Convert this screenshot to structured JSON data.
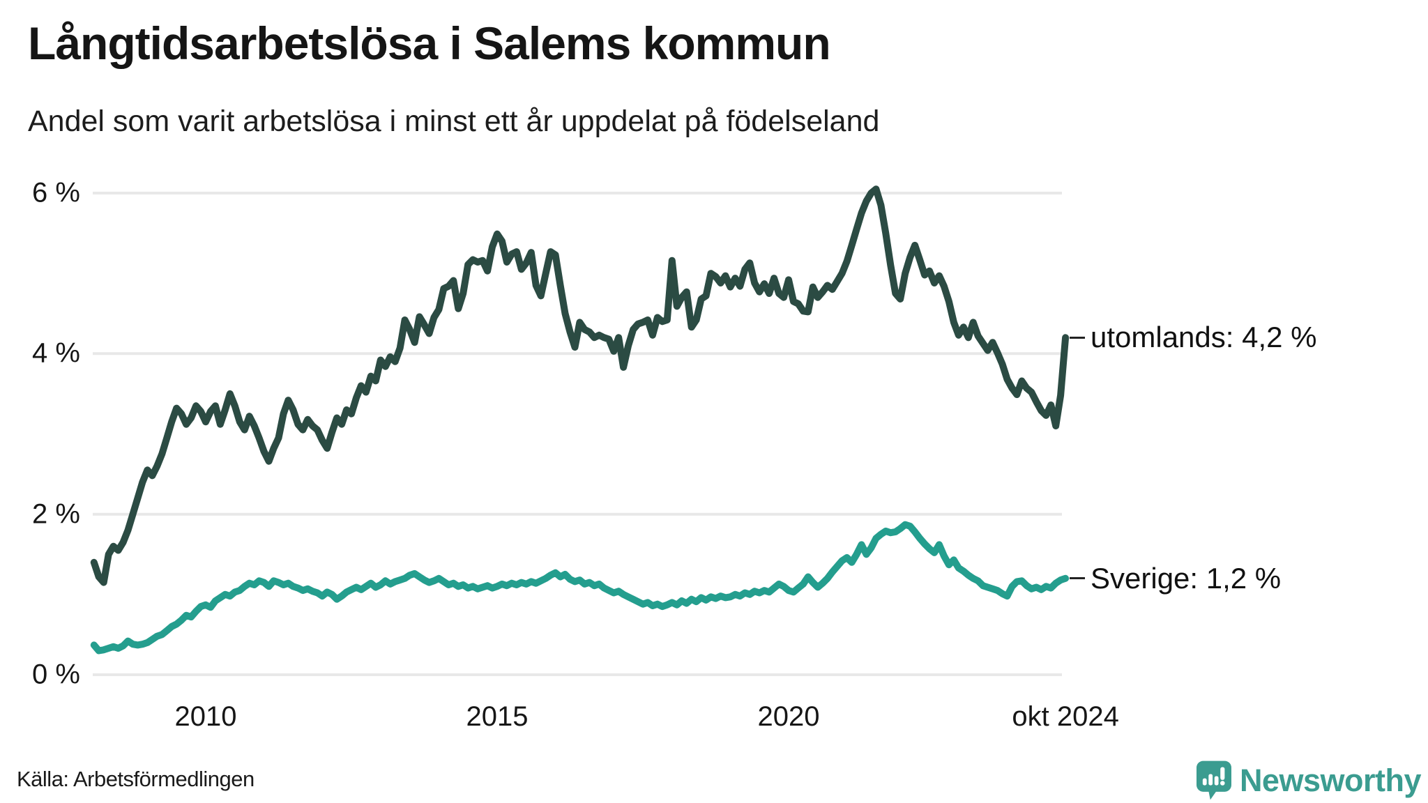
{
  "chart_data": {
    "type": "line",
    "title": "Långtidsarbetslösa i Salems kommun",
    "subtitle": "Andel som varit arbetslösa i minst ett år uppdelat på födelseland",
    "unit": "%",
    "grid": true,
    "legend_position": "right-end-labels",
    "x_start_year": 2008.0833,
    "x_step_years": 0.0833333,
    "xlim": [
      2008.0,
      2025.0
    ],
    "ylim": [
      0,
      6.3
    ],
    "y_ticks": [
      {
        "value": 6,
        "label": "6 %"
      },
      {
        "value": 4,
        "label": "4 %"
      },
      {
        "value": 2,
        "label": "2 %"
      },
      {
        "value": 0,
        "label": "0 %"
      }
    ],
    "x_ticks": [
      {
        "year": 2010,
        "label": "2010"
      },
      {
        "year": 2015,
        "label": "2015"
      },
      {
        "year": 2020,
        "label": "2020"
      },
      {
        "year": 2024.75,
        "label": "okt 2024"
      }
    ],
    "gridline_color": "#e8e8e8",
    "series": [
      {
        "name": "utomlands",
        "end_label": "utomlands: 4,2 %",
        "latest_value": 4.2,
        "color": "#2b4b43",
        "values": [
          1.4,
          1.22,
          1.15,
          1.5,
          1.6,
          1.55,
          1.65,
          1.8,
          2.0,
          2.2,
          2.4,
          2.55,
          2.48,
          2.6,
          2.75,
          2.95,
          3.15,
          3.32,
          3.25,
          3.12,
          3.2,
          3.35,
          3.28,
          3.15,
          3.28,
          3.35,
          3.12,
          3.3,
          3.5,
          3.35,
          3.15,
          3.05,
          3.22,
          3.1,
          2.95,
          2.78,
          2.66,
          2.82,
          2.95,
          3.25,
          3.42,
          3.3,
          3.12,
          3.05,
          3.18,
          3.1,
          3.05,
          2.92,
          2.82,
          3.02,
          3.2,
          3.12,
          3.3,
          3.25,
          3.45,
          3.6,
          3.52,
          3.72,
          3.66,
          3.92,
          3.84,
          3.96,
          3.9,
          4.07,
          4.42,
          4.3,
          4.14,
          4.46,
          4.36,
          4.25,
          4.45,
          4.55,
          4.81,
          4.84,
          4.91,
          4.56,
          4.75,
          5.11,
          5.17,
          5.14,
          5.16,
          5.03,
          5.33,
          5.49,
          5.4,
          5.14,
          5.24,
          5.27,
          5.05,
          5.13,
          5.26,
          4.85,
          4.72,
          5.0,
          5.27,
          5.23,
          4.85,
          4.5,
          4.27,
          4.08,
          4.39,
          4.3,
          4.27,
          4.2,
          4.23,
          4.2,
          4.18,
          4.03,
          4.2,
          3.83,
          4.1,
          4.3,
          4.37,
          4.39,
          4.42,
          4.23,
          4.45,
          4.4,
          4.42,
          5.16,
          4.59,
          4.7,
          4.77,
          4.33,
          4.42,
          4.68,
          4.72,
          5.0,
          4.96,
          4.88,
          4.97,
          4.83,
          4.94,
          4.84,
          5.05,
          5.13,
          4.88,
          4.77,
          4.87,
          4.75,
          4.94,
          4.75,
          4.7,
          4.92,
          4.65,
          4.62,
          4.53,
          4.52,
          4.83,
          4.7,
          4.77,
          4.85,
          4.8,
          4.9,
          5.0,
          5.15,
          5.35,
          5.55,
          5.75,
          5.9,
          6.0,
          6.05,
          5.85,
          5.5,
          5.1,
          4.75,
          4.68,
          5.0,
          5.2,
          5.35,
          5.17,
          4.98,
          5.03,
          4.88,
          4.97,
          4.84,
          4.65,
          4.39,
          4.23,
          4.33,
          4.2,
          4.39,
          4.22,
          4.13,
          4.04,
          4.14,
          4.01,
          3.87,
          3.68,
          3.57,
          3.49,
          3.66,
          3.57,
          3.52,
          3.4,
          3.29,
          3.23,
          3.36,
          3.1,
          3.48,
          4.2
        ]
      },
      {
        "name": "Sverige",
        "end_label": "Sverige: 1,2 %",
        "latest_value": 1.2,
        "color": "#249e8e",
        "values": [
          0.37,
          0.3,
          0.31,
          0.33,
          0.35,
          0.33,
          0.36,
          0.42,
          0.38,
          0.37,
          0.38,
          0.4,
          0.44,
          0.48,
          0.5,
          0.55,
          0.6,
          0.63,
          0.68,
          0.74,
          0.72,
          0.79,
          0.85,
          0.87,
          0.84,
          0.92,
          0.96,
          1.0,
          0.98,
          1.03,
          1.05,
          1.1,
          1.14,
          1.12,
          1.17,
          1.15,
          1.1,
          1.17,
          1.15,
          1.12,
          1.14,
          1.1,
          1.08,
          1.05,
          1.07,
          1.04,
          1.02,
          0.98,
          1.03,
          1.0,
          0.94,
          0.98,
          1.03,
          1.06,
          1.09,
          1.06,
          1.1,
          1.14,
          1.09,
          1.12,
          1.17,
          1.13,
          1.16,
          1.18,
          1.2,
          1.24,
          1.26,
          1.22,
          1.18,
          1.15,
          1.17,
          1.2,
          1.16,
          1.12,
          1.14,
          1.1,
          1.12,
          1.08,
          1.1,
          1.07,
          1.09,
          1.11,
          1.08,
          1.1,
          1.13,
          1.11,
          1.14,
          1.12,
          1.15,
          1.13,
          1.16,
          1.14,
          1.17,
          1.2,
          1.24,
          1.27,
          1.22,
          1.25,
          1.19,
          1.16,
          1.18,
          1.13,
          1.15,
          1.11,
          1.13,
          1.08,
          1.05,
          1.02,
          1.04,
          1.0,
          0.97,
          0.94,
          0.91,
          0.88,
          0.9,
          0.86,
          0.88,
          0.85,
          0.87,
          0.9,
          0.87,
          0.92,
          0.89,
          0.94,
          0.91,
          0.96,
          0.93,
          0.97,
          0.95,
          0.98,
          0.96,
          0.97,
          1.0,
          0.98,
          1.02,
          1.0,
          1.04,
          1.02,
          1.05,
          1.03,
          1.08,
          1.13,
          1.1,
          1.05,
          1.03,
          1.08,
          1.13,
          1.22,
          1.15,
          1.09,
          1.14,
          1.2,
          1.28,
          1.35,
          1.42,
          1.46,
          1.4,
          1.5,
          1.62,
          1.5,
          1.58,
          1.7,
          1.75,
          1.79,
          1.77,
          1.78,
          1.82,
          1.87,
          1.85,
          1.78,
          1.7,
          1.63,
          1.57,
          1.52,
          1.62,
          1.48,
          1.37,
          1.43,
          1.33,
          1.29,
          1.24,
          1.2,
          1.17,
          1.11,
          1.09,
          1.07,
          1.05,
          1.01,
          0.98,
          1.1,
          1.16,
          1.17,
          1.11,
          1.07,
          1.09,
          1.06,
          1.1,
          1.08,
          1.14,
          1.18,
          1.2
        ]
      }
    ]
  },
  "footer": {
    "source": "Källa: Arbetsförmedlingen",
    "brand": "Newsworthy",
    "brand_color": "#3b9c90"
  }
}
